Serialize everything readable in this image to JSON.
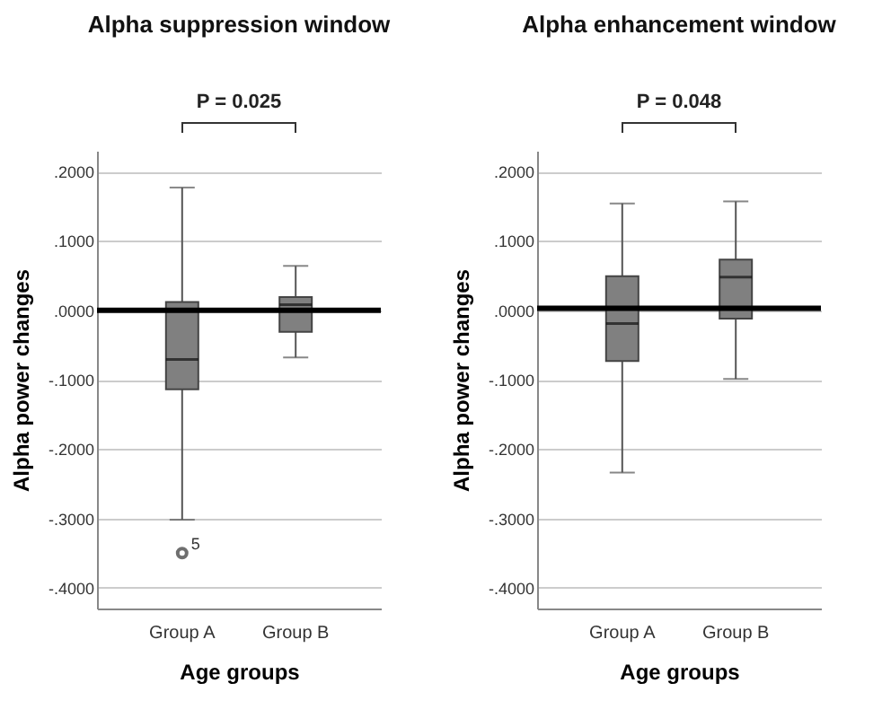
{
  "chart_data": [
    {
      "type": "box",
      "title": "Alpha suppression window",
      "xlabel": "Age groups",
      "ylabel": "Alpha power changes",
      "categories": [
        "Group A",
        "Group B"
      ],
      "color": "#808080",
      "ylim": [
        -0.43,
        0.23
      ],
      "yticks": [
        {
          "value": 0.2,
          "label": ".2000"
        },
        {
          "value": 0.1,
          "label": ".1000"
        },
        {
          "value": 0,
          "label": ".0000"
        },
        {
          "value": -0.1,
          "label": "-.1000"
        },
        {
          "value": -0.2,
          "label": "-.2000"
        },
        {
          "value": -0.3,
          "label": "-.3000"
        },
        {
          "value": -0.4,
          "label": "-.4000"
        }
      ],
      "grid": "y",
      "boxes": [
        {
          "low": -0.302,
          "q1": -0.114,
          "median": -0.071,
          "q3": 0.012,
          "high": 0.177,
          "outliers": [
            -0.35
          ]
        },
        {
          "low": -0.068,
          "q1": -0.031,
          "median": 0.008,
          "q3": 0.019,
          "high": 0.064
        }
      ],
      "ref_lines": [
        {
          "axis": "y",
          "value": 0,
          "color": "#000000"
        }
      ],
      "annotations": [
        "P = 0.025",
        "5"
      ]
    },
    {
      "type": "box",
      "title": "Alpha enhancement window",
      "xlabel": "Age groups",
      "ylabel": "Alpha power changes",
      "categories": [
        "Group A",
        "Group B"
      ],
      "color": "#808080",
      "ylim": [
        -0.43,
        0.23
      ],
      "yticks": [
        {
          "value": 0.2,
          "label": ".2000"
        },
        {
          "value": 0.1,
          "label": ".1000"
        },
        {
          "value": 0,
          "label": ".0000"
        },
        {
          "value": -0.1,
          "label": "-.1000"
        },
        {
          "value": -0.2,
          "label": "-.2000"
        },
        {
          "value": -0.3,
          "label": "-.3000"
        },
        {
          "value": -0.4,
          "label": "-.4000"
        }
      ],
      "grid": "y",
      "boxes": [
        {
          "low": -0.234,
          "q1": -0.073,
          "median": -0.019,
          "q3": 0.049,
          "high": 0.154
        },
        {
          "low": -0.099,
          "q1": -0.012,
          "median": 0.048,
          "q3": 0.073,
          "high": 0.157
        }
      ],
      "ref_lines": [
        {
          "axis": "y",
          "value": 0.003,
          "color": "#000000"
        }
      ],
      "annotations": [
        "P = 0.048"
      ]
    }
  ]
}
